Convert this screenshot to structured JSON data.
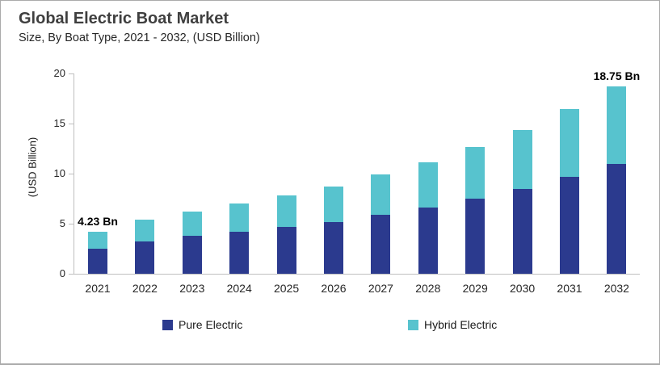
{
  "header": {
    "title": "Global Electric Boat Market",
    "subtitle": "Size, By Boat Type, 2021 - 2032, (USD Billion)"
  },
  "chart_data": {
    "type": "bar",
    "stacked": true,
    "title": "Global Electric Boat Market",
    "subtitle": "Size, By Boat Type, 2021 - 2032, (USD Billion)",
    "categories": [
      "2021",
      "2022",
      "2023",
      "2024",
      "2025",
      "2026",
      "2027",
      "2028",
      "2029",
      "2030",
      "2031",
      "2032"
    ],
    "series": [
      {
        "name": "Pure Electric",
        "color": "#2b3a8e",
        "values": [
          2.5,
          3.2,
          3.8,
          4.2,
          4.65,
          5.2,
          5.9,
          6.6,
          7.5,
          8.45,
          9.65,
          11.0
        ]
      },
      {
        "name": "Hybrid Electric",
        "color": "#57c3ce",
        "values": [
          1.73,
          2.2,
          2.45,
          2.8,
          3.15,
          3.55,
          4.0,
          4.55,
          5.2,
          5.9,
          6.8,
          7.75
        ]
      }
    ],
    "ylabel": "(USD Billion)",
    "xlabel": "",
    "ylim": [
      0,
      20
    ],
    "yticks": [
      0,
      5,
      10,
      15,
      20
    ],
    "grid": false,
    "legend_position": "bottom",
    "annotations": [
      {
        "category": "2021",
        "text": "4.23 Bn",
        "value": 4.23
      },
      {
        "category": "2032",
        "text": "18.75 Bn",
        "value": 18.75
      }
    ]
  },
  "style": {
    "axis_line_color": "#bfbfbf",
    "frame_border_color": "#ababab",
    "title_color": "#3f3f3f",
    "text_color": "#262626",
    "annotation_color": "#000000"
  }
}
